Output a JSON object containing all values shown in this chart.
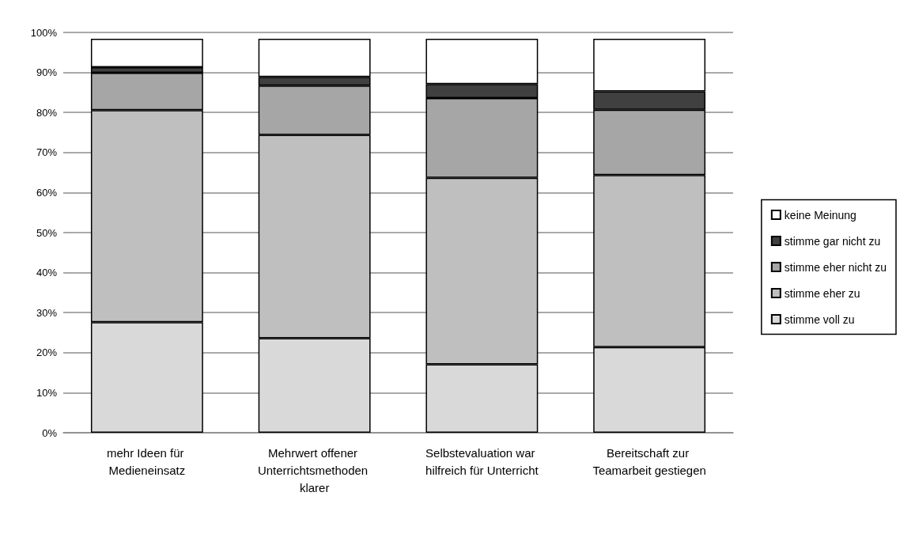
{
  "chart_data": {
    "type": "bar",
    "stacked": true,
    "categories": [
      "mehr Ideen für Medieneinsatz",
      "Mehrwert offener Unterrichtsmethoden klarer",
      "Selbstevaluation war hilfreich für Unterricht",
      "Bereitschaft zur Teamarbeit gestiegen"
    ],
    "series": [
      {
        "name": "stimme voll zu",
        "color": "#d9d9d9",
        "values": [
          27.6,
          23.6,
          17.1,
          21.4
        ]
      },
      {
        "name": "stimme eher zu",
        "color": "#bfbfbf",
        "values": [
          53,
          50.8,
          46.6,
          43
        ]
      },
      {
        "name": "stimme eher nicht zu",
        "color": "#a6a6a6",
        "values": [
          9.3,
          12.3,
          19.9,
          16.3
        ]
      },
      {
        "name": "stimme gar nicht zu",
        "color": "#404040",
        "values": [
          1.4,
          2.2,
          3.5,
          4.6
        ]
      },
      {
        "name": "keine Meinung",
        "color": "#ffffff",
        "values": [
          7.1,
          9.5,
          11.3,
          13.1
        ]
      }
    ],
    "ylim": [
      0,
      100
    ],
    "yticks": [
      {
        "value": 0,
        "label": "0%"
      },
      {
        "value": 10,
        "label": "10%"
      },
      {
        "value": 20,
        "label": "20%"
      },
      {
        "value": 30,
        "label": "30%"
      },
      {
        "value": 40,
        "label": "40%"
      },
      {
        "value": 50,
        "label": "50%"
      },
      {
        "value": 60,
        "label": "60%"
      },
      {
        "value": 70,
        "label": "70%"
      },
      {
        "value": 80,
        "label": "80%"
      },
      {
        "value": 90,
        "label": "90%"
      },
      {
        "value": 100,
        "label": "100%"
      }
    ],
    "grid": "y",
    "legend": "right"
  }
}
